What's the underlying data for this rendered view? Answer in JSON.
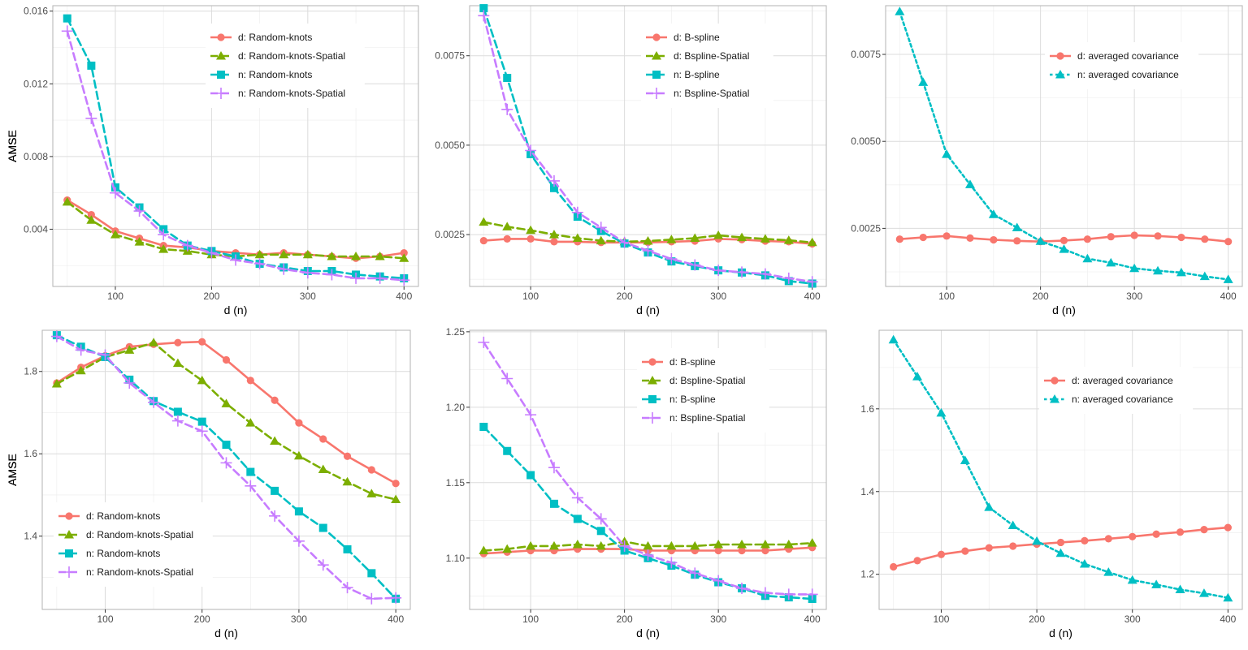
{
  "chart_data": [
    {
      "type": "line",
      "xlabel": "d (n)",
      "ylabel": "AMSE",
      "xlim": [
        35,
        415
      ],
      "ylim": [
        0.00085,
        0.0163
      ],
      "xticks": [
        100,
        200,
        300,
        400
      ],
      "xtick_labels": [
        "100",
        "200",
        "300",
        "400"
      ],
      "yticks": [
        0.004,
        0.008,
        0.012,
        0.016
      ],
      "ytick_labels": [
        "0.004",
        "0.008",
        "0.012",
        "0.016"
      ],
      "grid": true,
      "legend": "top-right",
      "x": [
        50,
        75,
        100,
        125,
        150,
        175,
        200,
        225,
        250,
        275,
        300,
        325,
        350,
        375,
        400
      ],
      "series": [
        {
          "name": "d: Random-knots",
          "color": "#F8766D",
          "marker": "circle",
          "dash": "solid",
          "values": [
            0.0056,
            0.0048,
            0.0039,
            0.0035,
            0.0031,
            0.003,
            0.0028,
            0.0027,
            0.0026,
            0.0027,
            0.0026,
            0.0025,
            0.0024,
            0.0025,
            0.0027
          ]
        },
        {
          "name": "d: Random-knots-Spatial",
          "color": "#7CAE00",
          "marker": "triangle",
          "dash": "dashed",
          "values": [
            0.0055,
            0.0045,
            0.0037,
            0.0033,
            0.0029,
            0.0028,
            0.0026,
            0.0025,
            0.0026,
            0.0026,
            0.0026,
            0.0025,
            0.0025,
            0.0025,
            0.0024
          ]
        },
        {
          "name": "n: Random-knots",
          "color": "#00BFC4",
          "marker": "square",
          "dash": "dashed",
          "values": [
            0.0156,
            0.013,
            0.0063,
            0.0052,
            0.004,
            0.0031,
            0.0028,
            0.0025,
            0.0021,
            0.0019,
            0.0017,
            0.0017,
            0.0015,
            0.0014,
            0.0013
          ]
        },
        {
          "name": "n: Random-knots-Spatial",
          "color": "#C77CFF",
          "marker": "plus",
          "dash": "dashed",
          "values": [
            0.0149,
            0.0101,
            0.006,
            0.005,
            0.0037,
            0.0031,
            0.0027,
            0.0023,
            0.0021,
            0.0018,
            0.0016,
            0.0015,
            0.0013,
            0.0013,
            0.0012
          ]
        }
      ]
    },
    {
      "type": "line",
      "xlabel": "d (n)",
      "ylabel": "AMSE",
      "xlim": [
        35,
        415
      ],
      "ylim": [
        0.00105,
        0.0089
      ],
      "xticks": [
        100,
        200,
        300,
        400
      ],
      "xtick_labels": [
        "100",
        "200",
        "300",
        "400"
      ],
      "yticks": [
        0.0025,
        0.005,
        0.0075
      ],
      "ytick_labels": [
        "0.0025",
        "0.0050",
        "0.0075"
      ],
      "grid": true,
      "legend": "top-right",
      "x": [
        50,
        75,
        100,
        125,
        150,
        175,
        200,
        225,
        250,
        275,
        300,
        325,
        350,
        375,
        400
      ],
      "series": [
        {
          "name": "d: B-spline",
          "color": "#F8766D",
          "marker": "circle",
          "dash": "solid",
          "values": [
            0.00233,
            0.00238,
            0.00238,
            0.0023,
            0.0023,
            0.00228,
            0.00228,
            0.00228,
            0.0023,
            0.00232,
            0.00238,
            0.00236,
            0.00232,
            0.0023,
            0.00224
          ]
        },
        {
          "name": "d: Bspline-Spatial",
          "color": "#7CAE00",
          "marker": "triangle",
          "dash": "dashed",
          "values": [
            0.00285,
            0.00272,
            0.00262,
            0.0025,
            0.0024,
            0.00233,
            0.0023,
            0.00232,
            0.00236,
            0.0024,
            0.00248,
            0.00242,
            0.00238,
            0.00234,
            0.00228
          ]
        },
        {
          "name": "n: B-spline",
          "color": "#00BFC4",
          "marker": "square",
          "dash": "dashed",
          "values": [
            0.00883,
            0.00688,
            0.00475,
            0.0038,
            0.003,
            0.0026,
            0.00225,
            0.002,
            0.00175,
            0.00162,
            0.0015,
            0.00144,
            0.00136,
            0.0012,
            0.00113
          ]
        },
        {
          "name": "n: Bspline-Spatial",
          "color": "#C77CFF",
          "marker": "plus",
          "dash": "dashed",
          "values": [
            0.00862,
            0.006,
            0.00485,
            0.004,
            0.00312,
            0.0027,
            0.00228,
            0.00205,
            0.00182,
            0.00165,
            0.0015,
            0.00145,
            0.0014,
            0.00128,
            0.00118
          ]
        }
      ]
    },
    {
      "type": "line",
      "xlabel": "d (n)",
      "ylabel": "AMSE",
      "xlim": [
        35,
        415
      ],
      "ylim": [
        0.00083,
        0.0089
      ],
      "xticks": [
        100,
        200,
        300,
        400
      ],
      "xtick_labels": [
        "100",
        "200",
        "300",
        "400"
      ],
      "yticks": [
        0.0025,
        0.005,
        0.0075
      ],
      "ytick_labels": [
        "0.0025",
        "0.0050",
        "0.0075"
      ],
      "grid": true,
      "legend": "top-right",
      "x": [
        50,
        75,
        100,
        125,
        150,
        175,
        200,
        225,
        250,
        275,
        300,
        325,
        350,
        375,
        400
      ],
      "series": [
        {
          "name": "d: averaged covariance",
          "color": "#F8766D",
          "marker": "circle",
          "dash": "solid",
          "values": [
            0.00219,
            0.00224,
            0.00228,
            0.00222,
            0.00217,
            0.00214,
            0.00212,
            0.00215,
            0.00219,
            0.00226,
            0.0023,
            0.00228,
            0.00224,
            0.00219,
            0.00212
          ]
        },
        {
          "name": "n: averaged covariance",
          "color": "#00BFC4",
          "marker": "triangle",
          "dash": "dotted",
          "values": [
            0.00873,
            0.0067,
            0.00463,
            0.00376,
            0.0029,
            0.00252,
            0.00213,
            0.0019,
            0.00163,
            0.00151,
            0.00135,
            0.00128,
            0.00123,
            0.00112,
            0.00103
          ]
        }
      ]
    },
    {
      "type": "line",
      "xlabel": "d (n)",
      "ylabel": "AMSE",
      "xlim": [
        35,
        415
      ],
      "ylim": [
        1.222,
        1.9
      ],
      "xticks": [
        100,
        200,
        300,
        400
      ],
      "xtick_labels": [
        "100",
        "200",
        "300",
        "400"
      ],
      "yticks": [
        1.4,
        1.6,
        1.8
      ],
      "ytick_labels": [
        "1.4",
        "1.6",
        "1.8"
      ],
      "grid": true,
      "legend": "bottom-left",
      "x": [
        50,
        75,
        100,
        125,
        150,
        175,
        200,
        225,
        250,
        275,
        300,
        325,
        350,
        375,
        400
      ],
      "series": [
        {
          "name": "d: Random-knots",
          "color": "#F8766D",
          "marker": "circle",
          "dash": "solid",
          "values": [
            1.772,
            1.81,
            1.838,
            1.86,
            1.866,
            1.87,
            1.872,
            1.828,
            1.778,
            1.73,
            1.675,
            1.636,
            1.594,
            1.561,
            1.528
          ]
        },
        {
          "name": "d: Random-knots-Spatial",
          "color": "#7CAE00",
          "marker": "triangle",
          "dash": "dashed",
          "values": [
            1.77,
            1.802,
            1.835,
            1.852,
            1.87,
            1.82,
            1.778,
            1.722,
            1.675,
            1.631,
            1.595,
            1.562,
            1.532,
            1.503,
            1.489
          ]
        },
        {
          "name": "n: Random-knots",
          "color": "#00BFC4",
          "marker": "square",
          "dash": "dashed",
          "values": [
            1.888,
            1.86,
            1.835,
            1.78,
            1.728,
            1.702,
            1.678,
            1.622,
            1.556,
            1.51,
            1.46,
            1.42,
            1.368,
            1.31,
            1.248
          ]
        },
        {
          "name": "n: Random-knots-Spatial",
          "color": "#C77CFF",
          "marker": "plus",
          "dash": "dashed",
          "values": [
            1.885,
            1.852,
            1.84,
            1.772,
            1.725,
            1.68,
            1.655,
            1.578,
            1.522,
            1.449,
            1.388,
            1.33,
            1.275,
            1.248,
            1.25
          ]
        }
      ]
    },
    {
      "type": "line",
      "xlabel": "d (n)",
      "ylabel": "AMSE",
      "xlim": [
        35,
        415
      ],
      "ylim": [
        1.066,
        1.251
      ],
      "xticks": [
        100,
        200,
        300,
        400
      ],
      "xtick_labels": [
        "100",
        "200",
        "300",
        "400"
      ],
      "yticks": [
        1.1,
        1.15,
        1.2,
        1.25
      ],
      "ytick_labels": [
        "1.10",
        "1.15",
        "1.20",
        "1.25"
      ],
      "grid": true,
      "legend": "top-right",
      "x": [
        50,
        75,
        100,
        125,
        150,
        175,
        200,
        225,
        250,
        275,
        300,
        325,
        350,
        375,
        400
      ],
      "series": [
        {
          "name": "d: B-spline",
          "color": "#F8766D",
          "marker": "circle",
          "dash": "solid",
          "values": [
            1.103,
            1.104,
            1.105,
            1.105,
            1.106,
            1.106,
            1.106,
            1.105,
            1.105,
            1.105,
            1.105,
            1.105,
            1.105,
            1.106,
            1.107
          ]
        },
        {
          "name": "d: Bspline-Spatial",
          "color": "#7CAE00",
          "marker": "triangle",
          "dash": "dashed",
          "values": [
            1.105,
            1.106,
            1.108,
            1.108,
            1.109,
            1.108,
            1.111,
            1.108,
            1.108,
            1.108,
            1.109,
            1.109,
            1.109,
            1.109,
            1.11
          ]
        },
        {
          "name": "n: B-spline",
          "color": "#00BFC4",
          "marker": "square",
          "dash": "dashed",
          "values": [
            1.187,
            1.171,
            1.155,
            1.136,
            1.126,
            1.118,
            1.105,
            1.1,
            1.095,
            1.089,
            1.084,
            1.08,
            1.075,
            1.074,
            1.073
          ]
        },
        {
          "name": "n: Bspline-Spatial",
          "color": "#C77CFF",
          "marker": "plus",
          "dash": "dashed",
          "values": [
            1.243,
            1.219,
            1.195,
            1.16,
            1.14,
            1.126,
            1.108,
            1.102,
            1.097,
            1.09,
            1.085,
            1.08,
            1.077,
            1.076,
            1.076
          ]
        }
      ]
    },
    {
      "type": "line",
      "xlabel": "d (n)",
      "ylabel": "AMSE",
      "xlim": [
        35,
        415
      ],
      "ylim": [
        1.115,
        1.79
      ],
      "xticks": [
        100,
        200,
        300,
        400
      ],
      "xtick_labels": [
        "100",
        "200",
        "300",
        "400"
      ],
      "yticks": [
        1.2,
        1.4,
        1.6
      ],
      "ytick_labels": [
        "1.2",
        "1.4",
        "1.6"
      ],
      "grid": true,
      "legend": "top-right",
      "x": [
        50,
        75,
        100,
        125,
        150,
        175,
        200,
        225,
        250,
        275,
        300,
        325,
        350,
        375,
        400
      ],
      "series": [
        {
          "name": "d: averaged covariance",
          "color": "#F8766D",
          "marker": "circle",
          "dash": "solid",
          "values": [
            1.218,
            1.233,
            1.248,
            1.256,
            1.264,
            1.268,
            1.273,
            1.277,
            1.281,
            1.286,
            1.291,
            1.297,
            1.302,
            1.308,
            1.313
          ]
        },
        {
          "name": "n: averaged covariance",
          "color": "#00BFC4",
          "marker": "triangle",
          "dash": "dotted",
          "values": [
            1.767,
            1.678,
            1.59,
            1.475,
            1.362,
            1.318,
            1.28,
            1.251,
            1.225,
            1.205,
            1.186,
            1.175,
            1.163,
            1.154,
            1.143
          ]
        }
      ]
    }
  ]
}
